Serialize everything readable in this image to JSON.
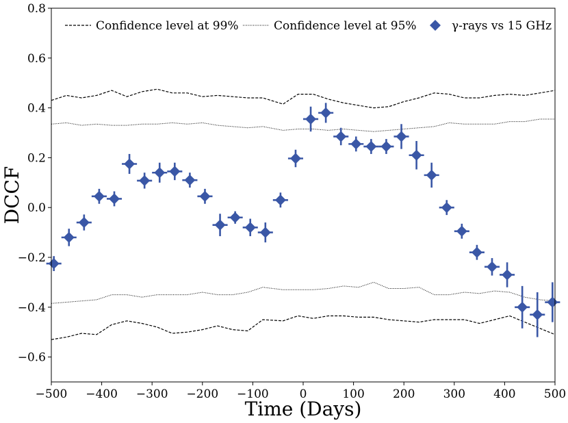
{
  "chart_data": {
    "type": "scatter",
    "xlabel": "Time (Days)",
    "ylabel": "DCCF",
    "xlim": [
      -500,
      500
    ],
    "ylim": [
      -0.7,
      0.8
    ],
    "xticks": [
      -500,
      -400,
      -300,
      -200,
      -100,
      0,
      100,
      200,
      300,
      400,
      500
    ],
    "xtick_labels": [
      "−500",
      "−400",
      "−300",
      "−200",
      "−100",
      "0",
      "100",
      "200",
      "300",
      "400",
      "500"
    ],
    "yticks": [
      -0.6,
      -0.4,
      -0.2,
      0.0,
      0.2,
      0.4,
      0.6,
      0.8
    ],
    "ytick_labels": [
      "−0.6",
      "−0.4",
      "−0.2",
      "0.0",
      "0.2",
      "0.4",
      "0.6",
      "0.8"
    ],
    "grid": false,
    "legend": {
      "placement": "top",
      "entries": [
        {
          "label": "Confidence level at 99%",
          "style": "dashed"
        },
        {
          "label": "Confidence level at 95%",
          "style": "dotted"
        },
        {
          "label": "γ-rays vs 15 GHz",
          "style": "diamond-marker"
        }
      ]
    },
    "series": [
      {
        "name": "γ-rays vs 15 GHz",
        "color": "#3a57a6",
        "x_err": 15,
        "x": [
          -495,
          -465,
          -435,
          -405,
          -375,
          -345,
          -315,
          -285,
          -255,
          -225,
          -195,
          -165,
          -135,
          -105,
          -75,
          -45,
          -15,
          15,
          45,
          75,
          105,
          135,
          165,
          195,
          225,
          255,
          285,
          315,
          345,
          375,
          405,
          435,
          465,
          495
        ],
        "y": [
          -0.225,
          -0.12,
          -0.06,
          0.045,
          0.035,
          0.175,
          0.108,
          0.14,
          0.145,
          0.11,
          0.045,
          -0.07,
          -0.04,
          -0.08,
          -0.1,
          0.03,
          0.197,
          0.355,
          0.38,
          0.285,
          0.255,
          0.245,
          0.245,
          0.285,
          0.21,
          0.13,
          0.0,
          -0.095,
          -0.18,
          -0.238,
          -0.27,
          -0.4,
          -0.43,
          -0.38
        ],
        "y_err": [
          0.03,
          0.035,
          0.032,
          0.03,
          0.03,
          0.04,
          0.032,
          0.04,
          0.035,
          0.03,
          0.03,
          0.045,
          0.025,
          0.035,
          0.04,
          0.03,
          0.035,
          0.05,
          0.04,
          0.035,
          0.03,
          0.03,
          0.03,
          0.05,
          0.057,
          0.05,
          0.03,
          0.03,
          0.03,
          0.035,
          0.05,
          0.085,
          0.09,
          0.08
        ]
      },
      {
        "name": "Confidence level at 99% (upper)",
        "style": "dashed",
        "x": [
          -500,
          -470,
          -440,
          -410,
          -380,
          -350,
          -320,
          -290,
          -260,
          -230,
          -200,
          -170,
          -140,
          -110,
          -80,
          -40,
          -10,
          20,
          50,
          80,
          110,
          140,
          170,
          200,
          230,
          260,
          290,
          320,
          350,
          380,
          410,
          440,
          470,
          500
        ],
        "y": [
          0.43,
          0.45,
          0.44,
          0.45,
          0.47,
          0.445,
          0.465,
          0.475,
          0.46,
          0.46,
          0.445,
          0.45,
          0.445,
          0.44,
          0.44,
          0.415,
          0.455,
          0.455,
          0.435,
          0.42,
          0.41,
          0.4,
          0.405,
          0.425,
          0.44,
          0.46,
          0.455,
          0.44,
          0.44,
          0.45,
          0.455,
          0.45,
          0.46,
          0.47
        ]
      },
      {
        "name": "Confidence level at 95% (upper)",
        "style": "dotted",
        "x": [
          -500,
          -470,
          -440,
          -410,
          -380,
          -350,
          -320,
          -290,
          -260,
          -230,
          -200,
          -170,
          -140,
          -110,
          -80,
          -40,
          -10,
          20,
          50,
          80,
          110,
          140,
          170,
          200,
          230,
          260,
          290,
          320,
          350,
          380,
          410,
          440,
          470,
          500
        ],
        "y": [
          0.335,
          0.34,
          0.33,
          0.335,
          0.33,
          0.33,
          0.335,
          0.335,
          0.34,
          0.335,
          0.34,
          0.33,
          0.325,
          0.32,
          0.325,
          0.31,
          0.315,
          0.315,
          0.31,
          0.315,
          0.31,
          0.305,
          0.31,
          0.315,
          0.32,
          0.325,
          0.34,
          0.335,
          0.335,
          0.335,
          0.345,
          0.345,
          0.355,
          0.355
        ]
      },
      {
        "name": "Confidence level at 95% (lower)",
        "style": "dotted",
        "x": [
          -500,
          -470,
          -440,
          -410,
          -380,
          -350,
          -320,
          -290,
          -260,
          -230,
          -200,
          -170,
          -140,
          -110,
          -80,
          -40,
          -10,
          20,
          50,
          80,
          110,
          140,
          170,
          200,
          230,
          260,
          290,
          320,
          350,
          380,
          410,
          440,
          470,
          500
        ],
        "y": [
          -0.385,
          -0.38,
          -0.375,
          -0.37,
          -0.35,
          -0.35,
          -0.36,
          -0.35,
          -0.35,
          -0.35,
          -0.34,
          -0.35,
          -0.35,
          -0.34,
          -0.32,
          -0.33,
          -0.33,
          -0.33,
          -0.325,
          -0.315,
          -0.32,
          -0.3,
          -0.325,
          -0.325,
          -0.32,
          -0.35,
          -0.35,
          -0.34,
          -0.345,
          -0.335,
          -0.34,
          -0.36,
          -0.37,
          -0.375
        ]
      },
      {
        "name": "Confidence level at 99% (lower)",
        "style": "dashed",
        "x": [
          -500,
          -470,
          -440,
          -410,
          -380,
          -350,
          -320,
          -290,
          -260,
          -230,
          -200,
          -170,
          -140,
          -110,
          -80,
          -40,
          -10,
          20,
          50,
          80,
          110,
          140,
          170,
          200,
          230,
          260,
          290,
          320,
          350,
          380,
          410,
          440,
          470,
          500
        ],
        "y": [
          -0.53,
          -0.52,
          -0.505,
          -0.51,
          -0.47,
          -0.455,
          -0.465,
          -0.48,
          -0.505,
          -0.5,
          -0.49,
          -0.475,
          -0.49,
          -0.495,
          -0.45,
          -0.455,
          -0.435,
          -0.445,
          -0.435,
          -0.435,
          -0.44,
          -0.44,
          -0.45,
          -0.455,
          -0.46,
          -0.45,
          -0.45,
          -0.45,
          -0.465,
          -0.45,
          -0.435,
          -0.46,
          -0.485,
          -0.51
        ]
      }
    ]
  }
}
